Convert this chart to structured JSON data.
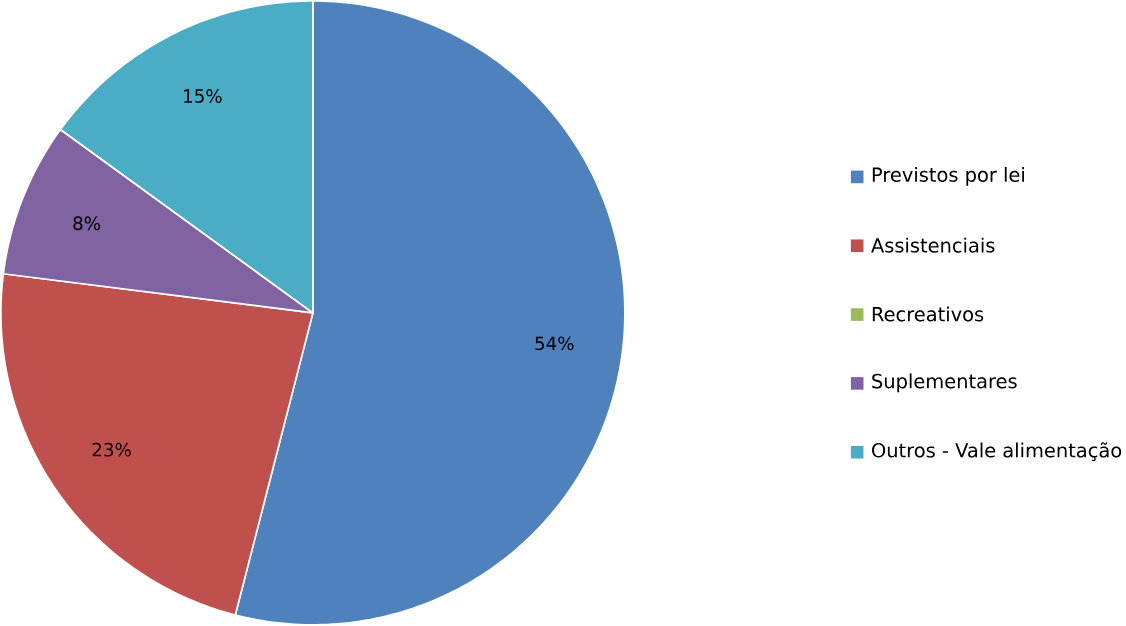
{
  "chart_data": {
    "type": "pie",
    "categories": [
      "Previstos por lei",
      "Assistenciais",
      "Recreativos",
      "Suplementares",
      "Outros - Vale alimentação"
    ],
    "values": [
      54,
      23,
      0,
      8,
      15
    ],
    "colors": [
      "#4f81bd",
      "#c0504d",
      "#9bbb59",
      "#8064a2",
      "#4bacc6"
    ],
    "value_labels": [
      "54%",
      "23%",
      null,
      "8%",
      "15%"
    ],
    "legend": "right"
  }
}
